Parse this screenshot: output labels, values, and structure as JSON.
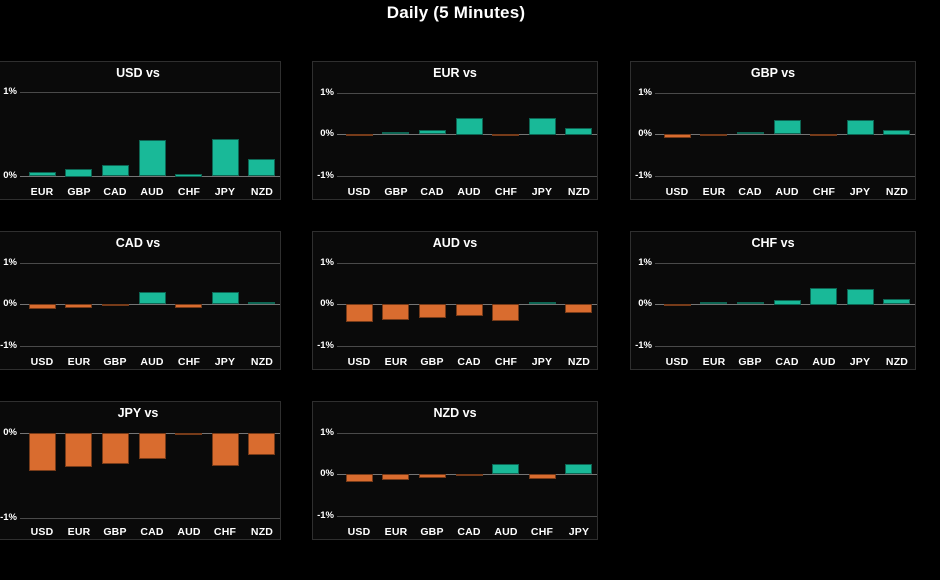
{
  "page": {
    "title": "Daily (5 Minutes)"
  },
  "colors": {
    "background": "#000000",
    "panel_background": "#0a0a0a",
    "panel_border": "#2f2f2f",
    "positive_bar": "#19B998",
    "negative_bar": "#D96C2F",
    "gridline": "#4a4a4a",
    "zero_line": "#757575",
    "text": "#ffffff"
  },
  "chart_data": [
    {
      "type": "bar",
      "title": "USD vs",
      "unit": "%",
      "categories": [
        "EUR",
        "GBP",
        "CAD",
        "AUD",
        "CHF",
        "JPY",
        "NZD"
      ],
      "values": [
        0.05,
        0.09,
        0.13,
        0.43,
        0.03,
        0.44,
        0.2
      ],
      "ylim": [
        -0.07,
        1.07
      ],
      "yticks": [
        {
          "label": "1%",
          "value": 1
        },
        {
          "label": "0%",
          "value": 0
        }
      ],
      "grid": {
        "row": 0,
        "col": 0
      },
      "legend": "none",
      "gridlines": "horizontal"
    },
    {
      "type": "bar",
      "title": "EUR vs",
      "unit": "%",
      "categories": [
        "USD",
        "GBP",
        "CAD",
        "AUD",
        "CHF",
        "JPY",
        "NZD"
      ],
      "values": [
        -0.04,
        0.04,
        0.1,
        0.4,
        -0.02,
        0.4,
        0.16
      ],
      "ylim": [
        -1.15,
        1.17
      ],
      "yticks": [
        {
          "label": "1%",
          "value": 1
        },
        {
          "label": "0%",
          "value": 0
        },
        {
          "label": "-1%",
          "value": -1
        }
      ],
      "grid": {
        "row": 0,
        "col": 1
      },
      "legend": "none",
      "gridlines": "horizontal"
    },
    {
      "type": "bar",
      "title": "GBP vs",
      "unit": "%",
      "categories": [
        "USD",
        "EUR",
        "CAD",
        "AUD",
        "CHF",
        "JPY",
        "NZD"
      ],
      "values": [
        -0.09,
        -0.04,
        0.05,
        0.34,
        -0.05,
        0.36,
        0.11
      ],
      "ylim": [
        -1.15,
        1.17
      ],
      "yticks": [
        {
          "label": "1%",
          "value": 1
        },
        {
          "label": "0%",
          "value": 0
        },
        {
          "label": "-1%",
          "value": -1
        }
      ],
      "grid": {
        "row": 0,
        "col": 2
      },
      "legend": "none",
      "gridlines": "horizontal"
    },
    {
      "type": "bar",
      "title": "CAD vs",
      "unit": "%",
      "categories": [
        "USD",
        "EUR",
        "GBP",
        "AUD",
        "CHF",
        "JPY",
        "NZD"
      ],
      "values": [
        -0.13,
        -0.09,
        -0.05,
        0.29,
        -0.1,
        0.3,
        0.06
      ],
      "ylim": [
        -1.15,
        1.17
      ],
      "yticks": [
        {
          "label": "1%",
          "value": 1
        },
        {
          "label": "0%",
          "value": 0
        },
        {
          "label": "-1%",
          "value": -1
        }
      ],
      "grid": {
        "row": 1,
        "col": 0
      },
      "legend": "none",
      "gridlines": "horizontal"
    },
    {
      "type": "bar",
      "title": "AUD vs",
      "unit": "%",
      "categories": [
        "USD",
        "EUR",
        "GBP",
        "CAD",
        "CHF",
        "JPY",
        "NZD"
      ],
      "values": [
        -0.43,
        -0.38,
        -0.34,
        -0.29,
        -0.4,
        0.01,
        -0.22
      ],
      "ylim": [
        -1.15,
        1.17
      ],
      "yticks": [
        {
          "label": "1%",
          "value": 1
        },
        {
          "label": "0%",
          "value": 0
        },
        {
          "label": "-1%",
          "value": -1
        }
      ],
      "grid": {
        "row": 1,
        "col": 1
      },
      "legend": "none",
      "gridlines": "horizontal"
    },
    {
      "type": "bar",
      "title": "CHF vs",
      "unit": "%",
      "categories": [
        "USD",
        "EUR",
        "GBP",
        "CAD",
        "AUD",
        "JPY",
        "NZD"
      ],
      "values": [
        -0.04,
        0.02,
        0.06,
        0.11,
        0.4,
        0.38,
        0.13
      ],
      "ylim": [
        -1.15,
        1.17
      ],
      "yticks": [
        {
          "label": "1%",
          "value": 1
        },
        {
          "label": "0%",
          "value": 0
        },
        {
          "label": "-1%",
          "value": -1
        }
      ],
      "grid": {
        "row": 1,
        "col": 2
      },
      "legend": "none",
      "gridlines": "horizontal"
    },
    {
      "type": "bar",
      "title": "JPY vs",
      "unit": "%",
      "categories": [
        "USD",
        "EUR",
        "GBP",
        "CAD",
        "AUD",
        "CHF",
        "NZD"
      ],
      "values": [
        -0.45,
        -0.4,
        -0.36,
        -0.31,
        -0.01,
        -0.39,
        -0.26
      ],
      "ylim": [
        -1.05,
        0.08
      ],
      "yticks": [
        {
          "label": "0%",
          "value": 0
        },
        {
          "label": "-1%",
          "value": -1
        }
      ],
      "grid": {
        "row": 2,
        "col": 0
      },
      "legend": "none",
      "gridlines": "horizontal"
    },
    {
      "type": "bar",
      "title": "NZD vs",
      "unit": "%",
      "categories": [
        "USD",
        "EUR",
        "GBP",
        "CAD",
        "AUD",
        "CHF",
        "JPY"
      ],
      "values": [
        -0.19,
        -0.14,
        -0.1,
        -0.06,
        0.24,
        -0.11,
        0.25
      ],
      "ylim": [
        -1.15,
        1.17
      ],
      "yticks": [
        {
          "label": "1%",
          "value": 1
        },
        {
          "label": "0%",
          "value": 0
        },
        {
          "label": "-1%",
          "value": -1
        }
      ],
      "grid": {
        "row": 2,
        "col": 1
      },
      "legend": "none",
      "gridlines": "horizontal"
    }
  ]
}
